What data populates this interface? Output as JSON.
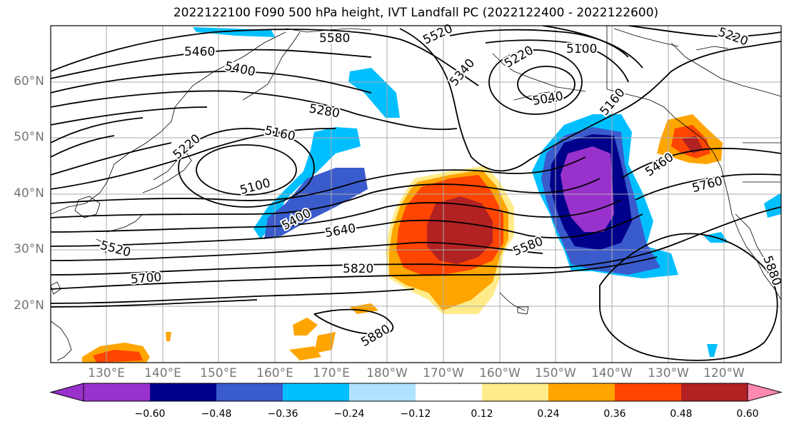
{
  "title": "2022122100 F090 500 hPa height, IVT Landfall PC (2022122400 - 2022122600)",
  "lat_labels": [
    "60°N",
    "50°N",
    "40°N",
    "30°N",
    "20°N"
  ],
  "lon_labels": [
    "130°E",
    "140°E",
    "150°E",
    "160°E",
    "170°E",
    "180°W",
    "170°W",
    "160°W",
    "150°W",
    "140°W",
    "130°W",
    "120°W"
  ],
  "contour_labels": [
    "5580",
    "5520",
    "5460",
    "5400",
    "5340",
    "5220",
    "5100",
    "5040",
    "5280",
    "5160",
    "5220",
    "5100",
    "5160",
    "5400",
    "5640",
    "5520",
    "5700",
    "5820",
    "5880",
    "5580",
    "5460",
    "5760",
    "5880",
    "5220"
  ],
  "colorbar": {
    "ticks": [
      "−0.60",
      "−0.48",
      "−0.36",
      "−0.24",
      "−0.12",
      "0.12",
      "0.24",
      "0.36",
      "0.48",
      "0.60"
    ],
    "colors": [
      "#9932cc",
      "#00008b",
      "#3a5bcc",
      "#00bfff",
      "#b0e2ff",
      "#ffffff",
      "#ffeb8a",
      "#ffa500",
      "#ff4500",
      "#b22222",
      "#ff88b0"
    ]
  },
  "colors": {
    "contour": "#000000",
    "grid": "#aaaaaa"
  }
}
